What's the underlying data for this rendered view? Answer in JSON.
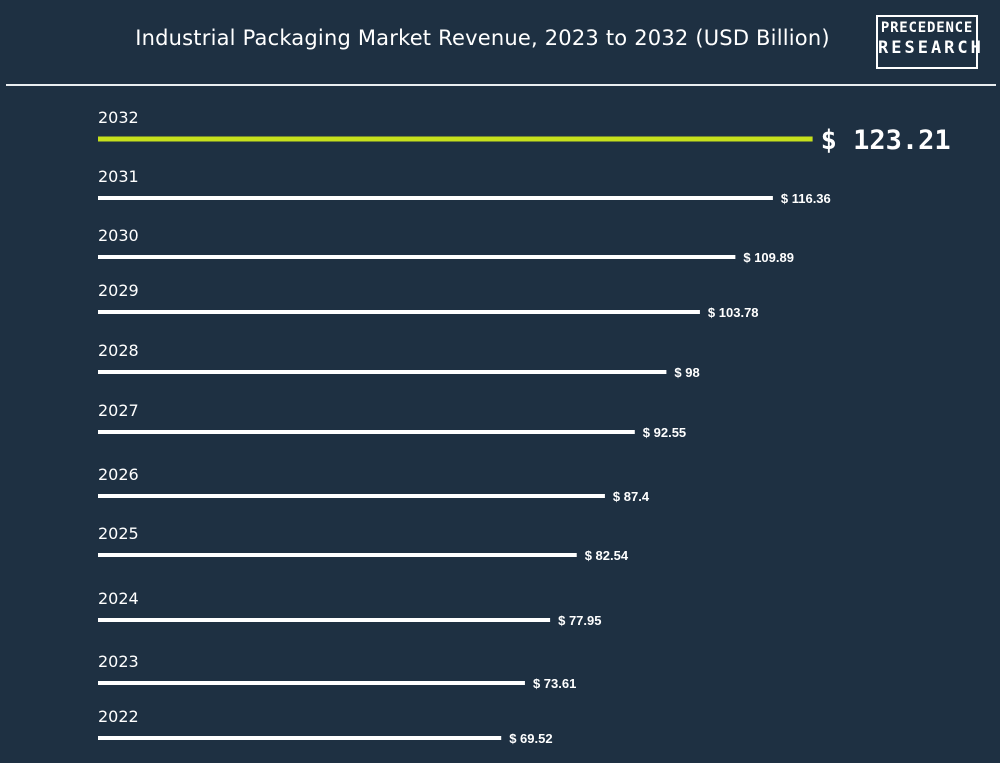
{
  "header": {
    "title": "Industrial Packaging Market Revenue, 2023 to 2032 (USD Billion)",
    "logo_line1": "PRECEDENCE",
    "logo_line2": "RESEARCH"
  },
  "colors": {
    "background": "#1e3042",
    "bar": "#ffffff",
    "highlight_bar": "#c6e01c",
    "text": "#ffffff"
  },
  "chart_data": {
    "type": "bar",
    "orientation": "horizontal",
    "title": "Industrial Packaging Market Revenue, 2023 to 2032 (USD Billion)",
    "categories": [
      "2032",
      "2031",
      "2030",
      "2029",
      "2028",
      "2027",
      "2026",
      "2025",
      "2024",
      "2023",
      "2022"
    ],
    "values": [
      123.21,
      116.36,
      109.89,
      103.78,
      98,
      92.55,
      87.4,
      82.54,
      77.95,
      73.61,
      69.52
    ],
    "value_labels": [
      "$ 123.21",
      "$ 116.36",
      "$ 109.89",
      "$ 103.78",
      "$ 98",
      "$ 92.55",
      "$ 87.4",
      "$ 82.54",
      "$ 77.95",
      "$  73.61",
      "$ 69.52"
    ],
    "highlight_category": "2032",
    "xlabel": "",
    "ylabel": "",
    "grid": false,
    "legend": "none"
  }
}
